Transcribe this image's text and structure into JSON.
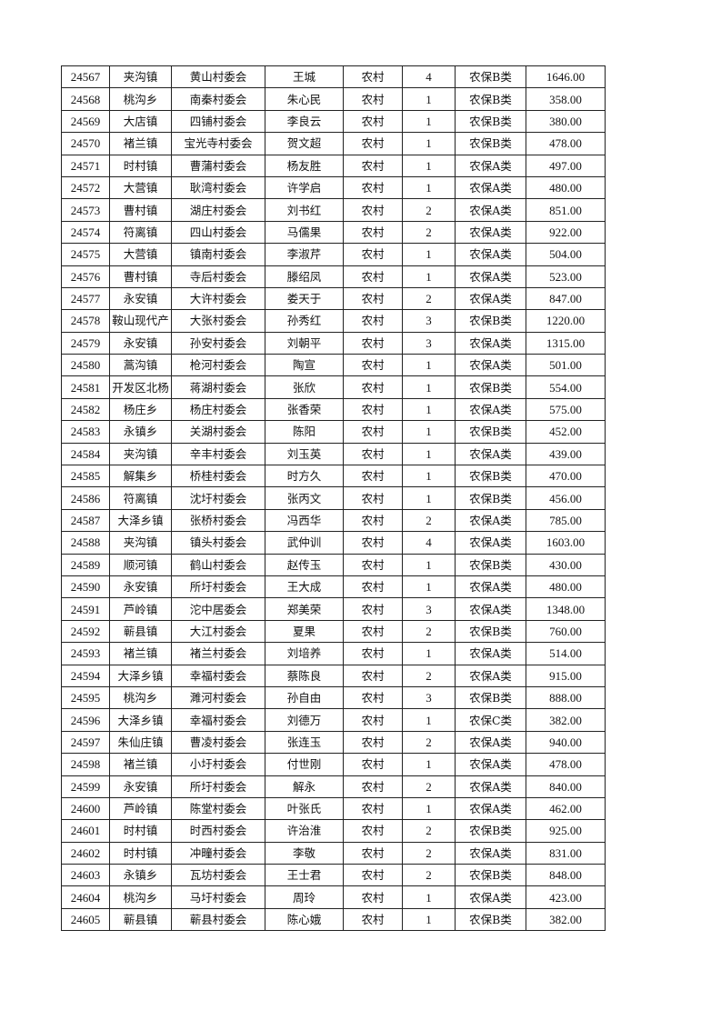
{
  "rows": [
    [
      "24567",
      "夹沟镇",
      "黄山村委会",
      "王城",
      "农村",
      "4",
      "农保B类",
      "1646.00"
    ],
    [
      "24568",
      "桃沟乡",
      "南秦村委会",
      "朱心民",
      "农村",
      "1",
      "农保B类",
      "358.00"
    ],
    [
      "24569",
      "大店镇",
      "四铺村委会",
      "李良云",
      "农村",
      "1",
      "农保B类",
      "380.00"
    ],
    [
      "24570",
      "褚兰镇",
      "宝光寺村委会",
      "贺文超",
      "农村",
      "1",
      "农保B类",
      "478.00"
    ],
    [
      "24571",
      "时村镇",
      "曹蒲村委会",
      "杨友胜",
      "农村",
      "1",
      "农保A类",
      "497.00"
    ],
    [
      "24572",
      "大营镇",
      "耿湾村委会",
      "许学启",
      "农村",
      "1",
      "农保A类",
      "480.00"
    ],
    [
      "24573",
      "曹村镇",
      "湖庄村委会",
      "刘书红",
      "农村",
      "2",
      "农保A类",
      "851.00"
    ],
    [
      "24574",
      "符离镇",
      "四山村委会",
      "马儒果",
      "农村",
      "2",
      "农保A类",
      "922.00"
    ],
    [
      "24575",
      "大营镇",
      "镇南村委会",
      "李淑芹",
      "农村",
      "1",
      "农保A类",
      "504.00"
    ],
    [
      "24576",
      "曹村镇",
      "寺后村委会",
      "滕绍凤",
      "农村",
      "1",
      "农保A类",
      "523.00"
    ],
    [
      "24577",
      "永安镇",
      "大许村委会",
      "娄天于",
      "农村",
      "2",
      "农保A类",
      "847.00"
    ],
    [
      "24578",
      "鞍山现代产",
      "大张村委会",
      "孙秀红",
      "农村",
      "3",
      "农保B类",
      "1220.00"
    ],
    [
      "24579",
      "永安镇",
      "孙安村委会",
      "刘朝平",
      "农村",
      "3",
      "农保A类",
      "1315.00"
    ],
    [
      "24580",
      "蒿沟镇",
      "枪河村委会",
      "陶宣",
      "农村",
      "1",
      "农保A类",
      "501.00"
    ],
    [
      "24581",
      "开发区北杨",
      "蒋湖村委会",
      "张欣",
      "农村",
      "1",
      "农保B类",
      "554.00"
    ],
    [
      "24582",
      "杨庄乡",
      "杨庄村委会",
      "张香荣",
      "农村",
      "1",
      "农保A类",
      "575.00"
    ],
    [
      "24583",
      "永镇乡",
      "关湖村委会",
      "陈阳",
      "农村",
      "1",
      "农保B类",
      "452.00"
    ],
    [
      "24584",
      "夹沟镇",
      "辛丰村委会",
      "刘玉英",
      "农村",
      "1",
      "农保A类",
      "439.00"
    ],
    [
      "24585",
      "解集乡",
      "桥桂村委会",
      "时方久",
      "农村",
      "1",
      "农保B类",
      "470.00"
    ],
    [
      "24586",
      "符离镇",
      "沈圩村委会",
      "张丙文",
      "农村",
      "1",
      "农保B类",
      "456.00"
    ],
    [
      "24587",
      "大泽乡镇",
      "张桥村委会",
      "冯西华",
      "农村",
      "2",
      "农保A类",
      "785.00"
    ],
    [
      "24588",
      "夹沟镇",
      "镇头村委会",
      "武仲训",
      "农村",
      "4",
      "农保A类",
      "1603.00"
    ],
    [
      "24589",
      "顺河镇",
      "鹤山村委会",
      "赵传玉",
      "农村",
      "1",
      "农保B类",
      "430.00"
    ],
    [
      "24590",
      "永安镇",
      "所圩村委会",
      "王大成",
      "农村",
      "1",
      "农保A类",
      "480.00"
    ],
    [
      "24591",
      "芦岭镇",
      "沱中居委会",
      "郑美荣",
      "农村",
      "3",
      "农保A类",
      "1348.00"
    ],
    [
      "24592",
      "蕲县镇",
      "大江村委会",
      "夏果",
      "农村",
      "2",
      "农保B类",
      "760.00"
    ],
    [
      "24593",
      "褚兰镇",
      "褚兰村委会",
      "刘培养",
      "农村",
      "1",
      "农保A类",
      "514.00"
    ],
    [
      "24594",
      "大泽乡镇",
      "幸福村委会",
      "蔡陈良",
      "农村",
      "2",
      "农保A类",
      "915.00"
    ],
    [
      "24595",
      "桃沟乡",
      "濉河村委会",
      "孙自由",
      "农村",
      "3",
      "农保B类",
      "888.00"
    ],
    [
      "24596",
      "大泽乡镇",
      "幸福村委会",
      "刘德万",
      "农村",
      "1",
      "农保C类",
      "382.00"
    ],
    [
      "24597",
      "朱仙庄镇",
      "曹凌村委会",
      "张连玉",
      "农村",
      "2",
      "农保A类",
      "940.00"
    ],
    [
      "24598",
      "褚兰镇",
      "小圩村委会",
      "付世刚",
      "农村",
      "1",
      "农保A类",
      "478.00"
    ],
    [
      "24599",
      "永安镇",
      "所圩村委会",
      "解永",
      "农村",
      "2",
      "农保A类",
      "840.00"
    ],
    [
      "24600",
      "芦岭镇",
      "陈堂村委会",
      "叶张氏",
      "农村",
      "1",
      "农保A类",
      "462.00"
    ],
    [
      "24601",
      "时村镇",
      "时西村委会",
      "许治淮",
      "农村",
      "2",
      "农保B类",
      "925.00"
    ],
    [
      "24602",
      "时村镇",
      "冲疃村委会",
      "李敬",
      "农村",
      "2",
      "农保A类",
      "831.00"
    ],
    [
      "24603",
      "永镇乡",
      "瓦坊村委会",
      "王士君",
      "农村",
      "2",
      "农保B类",
      "848.00"
    ],
    [
      "24604",
      "桃沟乡",
      "马圩村委会",
      "周玲",
      "农村",
      "1",
      "农保A类",
      "423.00"
    ],
    [
      "24605",
      "蕲县镇",
      "蕲县村委会",
      "陈心娥",
      "农村",
      "1",
      "农保B类",
      "382.00"
    ]
  ]
}
